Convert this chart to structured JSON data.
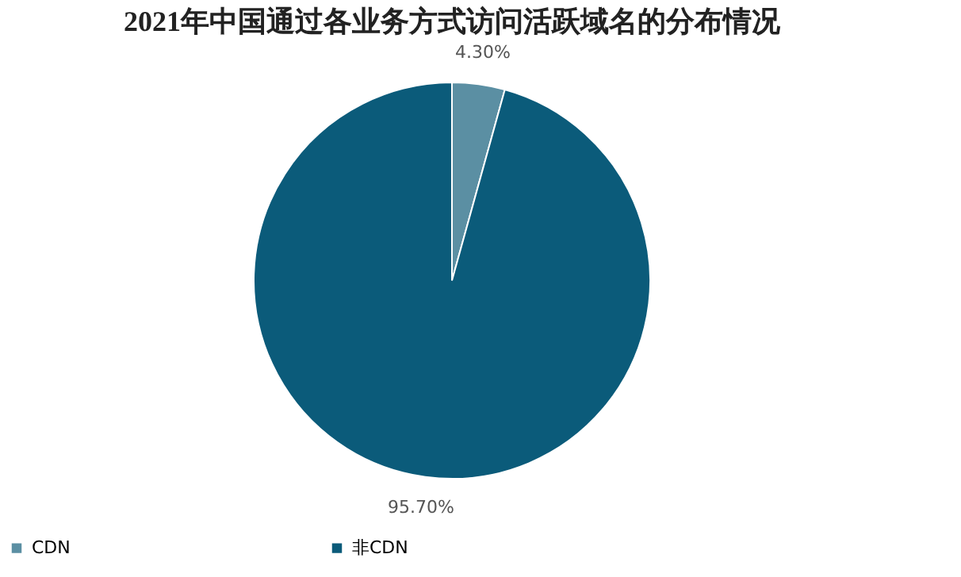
{
  "chart_data": {
    "type": "pie",
    "title": "2021年中国通过各业务方式访问活跃域名的分布情况",
    "categories": [
      "CDN",
      "非CDN"
    ],
    "values": [
      4.3,
      95.7
    ],
    "colors": [
      "#5b8fa3",
      "#0b5b7a"
    ],
    "value_labels": [
      "4.30%",
      "95.70%"
    ],
    "legend": "bottom"
  }
}
